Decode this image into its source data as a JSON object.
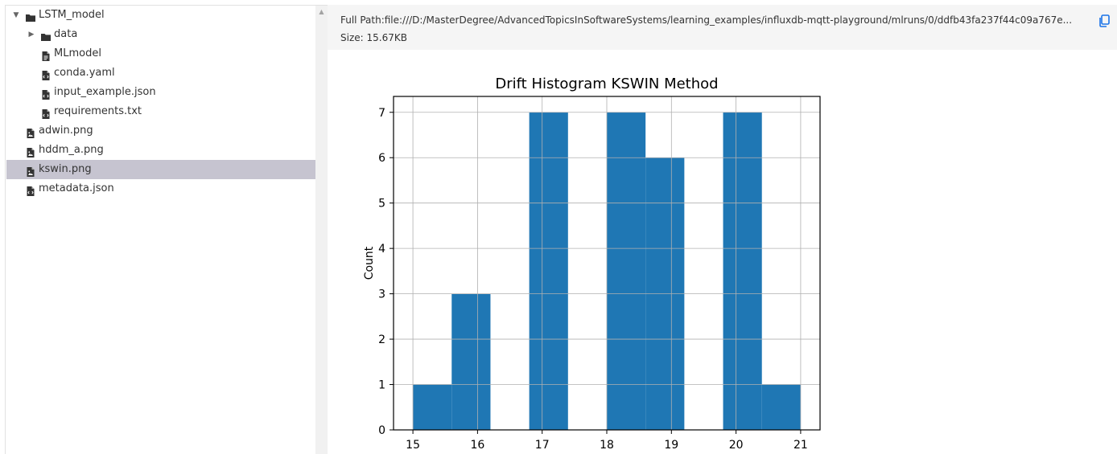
{
  "tree": {
    "items": [
      {
        "label": "LSTM_model",
        "type": "folder",
        "expanded": true,
        "depth": 0
      },
      {
        "label": "data",
        "type": "folder",
        "expanded": false,
        "depth": 1
      },
      {
        "label": "MLmodel",
        "type": "file",
        "depth": 1
      },
      {
        "label": "conda.yaml",
        "type": "code-file",
        "depth": 1
      },
      {
        "label": "input_example.json",
        "type": "code-file",
        "depth": 1
      },
      {
        "label": "requirements.txt",
        "type": "code-file",
        "depth": 1
      },
      {
        "label": "adwin.png",
        "type": "image-file",
        "depth": 0
      },
      {
        "label": "hddm_a.png",
        "type": "image-file",
        "depth": 0
      },
      {
        "label": "kswin.png",
        "type": "image-file",
        "depth": 0,
        "selected": true
      },
      {
        "label": "metadata.json",
        "type": "code-file",
        "depth": 0
      }
    ]
  },
  "preview": {
    "full_path": "Full Path:file:///D:/MasterDegree/AdvancedTopicsInSoftwareSystems/learning_examples/influxdb-mqtt-playground/mlruns/0/ddfb43fa237f44c09a767e...",
    "size": "Size: 15.67KB",
    "copy_icon": "copy-icon",
    "accent_color": "#1a73e8"
  },
  "chart_data": {
    "type": "bar",
    "title": "Drift Histogram KSWIN Method",
    "xlabel": "",
    "ylabel": "Count",
    "xlim": [
      14.7,
      21.3
    ],
    "ylim": [
      0,
      7.35
    ],
    "xticks": [
      15,
      16,
      17,
      18,
      19,
      20,
      21
    ],
    "yticks": [
      0,
      1,
      2,
      3,
      4,
      5,
      6,
      7
    ],
    "grid": true,
    "bar_color": "#1f77b4",
    "bins": [
      {
        "x0": 15.0,
        "x1": 15.6,
        "count": 1
      },
      {
        "x0": 15.6,
        "x1": 16.2,
        "count": 3
      },
      {
        "x0": 16.2,
        "x1": 16.8,
        "count": 0
      },
      {
        "x0": 16.8,
        "x1": 17.4,
        "count": 7
      },
      {
        "x0": 17.4,
        "x1": 18.0,
        "count": 0
      },
      {
        "x0": 18.0,
        "x1": 18.6,
        "count": 7
      },
      {
        "x0": 18.6,
        "x1": 19.2,
        "count": 6
      },
      {
        "x0": 19.2,
        "x1": 19.8,
        "count": 0
      },
      {
        "x0": 19.8,
        "x1": 20.4,
        "count": 7
      },
      {
        "x0": 20.4,
        "x1": 21.0,
        "count": 1
      }
    ]
  }
}
